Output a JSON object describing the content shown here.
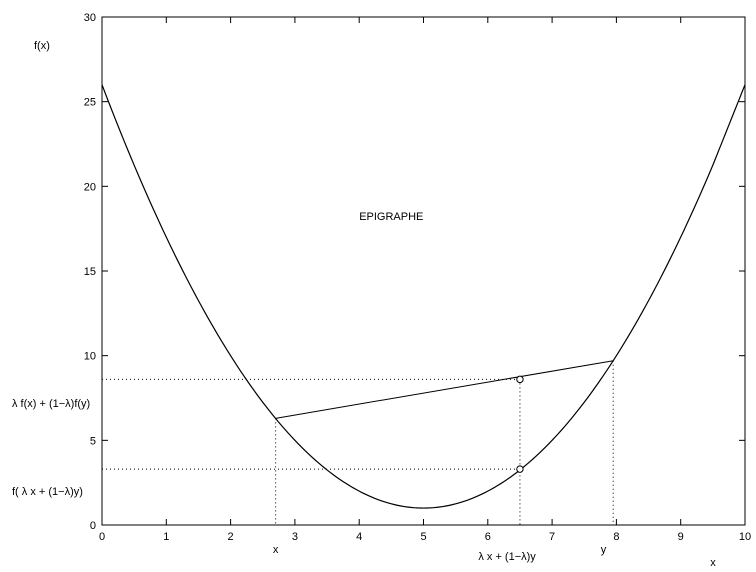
{
  "chart_data": {
    "type": "line",
    "title": "",
    "xlabel": "x",
    "ylabel": "f(x)",
    "xlim": [
      0,
      10
    ],
    "ylim": [
      0,
      30
    ],
    "xticks": [
      0,
      1,
      2,
      3,
      4,
      5,
      6,
      7,
      8,
      9,
      10
    ],
    "yticks": [
      0,
      5,
      10,
      15,
      20,
      25,
      30
    ],
    "grid": false,
    "legend": "none",
    "series": [
      {
        "kind": "curve",
        "x": [
          0,
          0.5,
          1,
          1.5,
          2,
          2.5,
          3,
          3.5,
          4,
          4.5,
          5,
          5.5,
          6,
          6.5,
          7,
          7.5,
          8,
          8.5,
          9,
          9.5,
          10
        ],
        "y": [
          26,
          21.25,
          17,
          13.25,
          10,
          7.25,
          5,
          3.25,
          2,
          1.25,
          1,
          1.25,
          2,
          3.25,
          5,
          7.25,
          10,
          13.25,
          17,
          21.25,
          26
        ]
      },
      {
        "kind": "chord",
        "x": [
          2.7,
          7.95
        ],
        "y": [
          6.3,
          9.7
        ]
      }
    ],
    "markers": [
      {
        "x": 6.5,
        "y": 8.6,
        "symbol": "o"
      },
      {
        "x": 6.5,
        "y": 3.3,
        "symbol": "o"
      }
    ],
    "guides": {
      "vertical": [
        {
          "x": 2.7,
          "y_top": 6.3
        },
        {
          "x": 6.5,
          "y_top": 8.6
        },
        {
          "x": 7.95,
          "y_top": 9.7
        }
      ],
      "horizontal": [
        {
          "y": 8.6,
          "x_right": 6.5
        },
        {
          "y": 3.3,
          "x_right": 6.5
        }
      ]
    },
    "annotations": {
      "region_label": {
        "text": "EPIGRAPHE",
        "x": 4,
        "y": 18
      },
      "chord_label": {
        "text": "λ f(x) + (1−λ)f(y)",
        "y": 7.2
      },
      "curve_point_label": {
        "text": "f( λ x + (1−λ)y)",
        "y": 2
      },
      "x_point_label": {
        "text": "x",
        "x": 2.7
      },
      "mid_point_label": {
        "text": "λ x + (1−λ)y",
        "x": 6.3
      },
      "y_point_label": {
        "text": "y",
        "x": 7.8
      }
    }
  }
}
